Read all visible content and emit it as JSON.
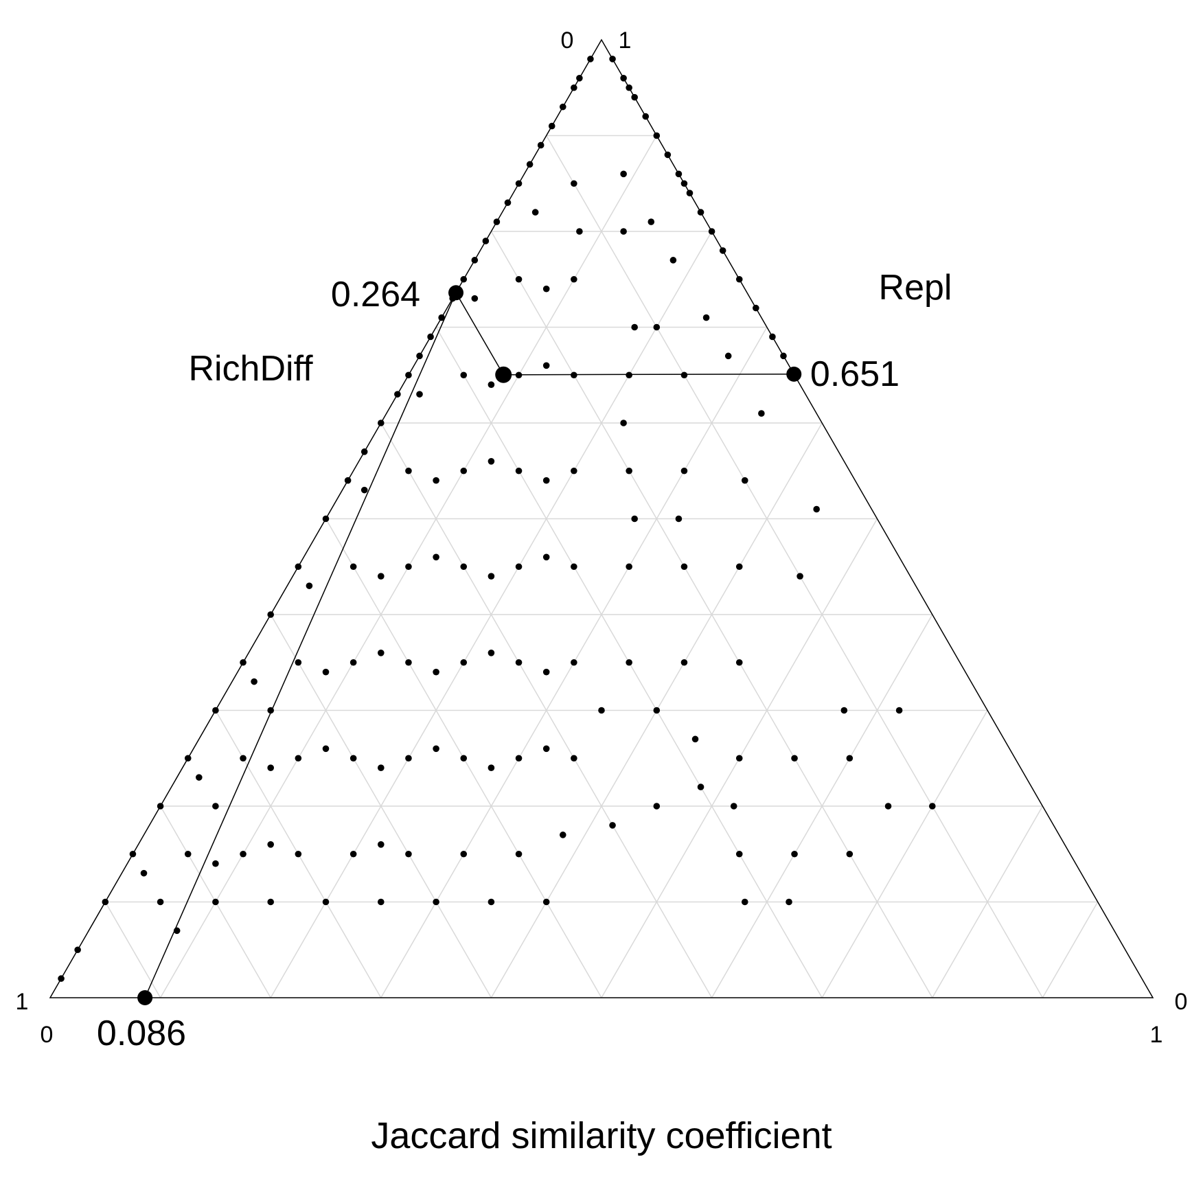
{
  "chart_data": {
    "type": "scatter",
    "subtype": "ternary",
    "title": "",
    "xlabel": "Jaccard similarity coefficient",
    "axes": {
      "richdiff": {
        "name": "RichDiff"
      },
      "repl": {
        "name": "Repl"
      }
    },
    "corner_ticks": {
      "apex_left": "0",
      "apex_right": "1",
      "bottom_left_upper": "1",
      "bottom_left_lower": "0",
      "bottom_right_upper": "0",
      "bottom_right_lower": "1"
    },
    "grid": true,
    "grid_step": 0.1,
    "mean_point": {
      "similarity": 0.086,
      "richdiff": 0.264,
      "repl": 0.651
    },
    "mean_labels": {
      "similarity": "0.086",
      "richdiff": "0.264",
      "repl": "0.651"
    },
    "point_color": "#000000",
    "grid_color": "#d9d9d9",
    "points": [
      [
        0.0,
        0.02,
        0.98
      ],
      [
        0.0,
        0.04,
        0.96
      ],
      [
        0.0,
        0.05,
        0.95
      ],
      [
        0.0,
        0.07,
        0.93
      ],
      [
        0.0,
        0.09,
        0.91
      ],
      [
        0.0,
        0.11,
        0.89
      ],
      [
        0.0,
        0.13,
        0.87
      ],
      [
        0.0,
        0.15,
        0.85
      ],
      [
        0.0,
        0.17,
        0.83
      ],
      [
        0.0,
        0.19,
        0.81
      ],
      [
        0.0,
        0.21,
        0.79
      ],
      [
        0.0,
        0.23,
        0.77
      ],
      [
        0.0,
        0.25,
        0.75
      ],
      [
        0.0,
        0.27,
        0.73
      ],
      [
        0.0,
        0.29,
        0.71
      ],
      [
        0.0,
        0.31,
        0.69
      ],
      [
        0.0,
        0.33,
        0.67
      ],
      [
        0.0,
        0.35,
        0.65
      ],
      [
        0.0,
        0.37,
        0.63
      ],
      [
        0.0,
        0.4,
        0.6
      ],
      [
        0.0,
        0.43,
        0.57
      ],
      [
        0.0,
        0.46,
        0.54
      ],
      [
        0.0,
        0.5,
        0.5
      ],
      [
        0.0,
        0.55,
        0.45
      ],
      [
        0.0,
        0.6,
        0.4
      ],
      [
        0.0,
        0.65,
        0.35
      ],
      [
        0.0,
        0.7,
        0.3
      ],
      [
        0.0,
        0.75,
        0.25
      ],
      [
        0.0,
        0.8,
        0.2
      ],
      [
        0.0,
        0.85,
        0.15
      ],
      [
        0.0,
        0.9,
        0.1
      ],
      [
        0.0,
        0.95,
        0.05
      ],
      [
        0.0,
        0.98,
        0.02
      ],
      [
        0.02,
        0.0,
        0.98
      ],
      [
        0.04,
        0.0,
        0.96
      ],
      [
        0.06,
        0.0,
        0.94
      ],
      [
        0.08,
        0.0,
        0.92
      ],
      [
        0.1,
        0.0,
        0.9
      ],
      [
        0.12,
        0.0,
        0.88
      ],
      [
        0.14,
        0.0,
        0.86
      ],
      [
        0.16,
        0.0,
        0.84
      ],
      [
        0.18,
        0.0,
        0.82
      ],
      [
        0.2,
        0.0,
        0.8
      ],
      [
        0.22,
        0.0,
        0.78
      ],
      [
        0.25,
        0.0,
        0.75
      ],
      [
        0.28,
        0.0,
        0.72
      ],
      [
        0.31,
        0.0,
        0.69
      ],
      [
        0.33,
        0.0,
        0.67
      ],
      [
        0.05,
        0.0,
        0.95
      ],
      [
        0.15,
        0.0,
        0.85
      ],
      [
        0.2,
        0.1,
        0.7
      ],
      [
        0.25,
        0.1,
        0.65
      ],
      [
        0.3,
        0.15,
        0.55
      ],
      [
        0.2,
        0.15,
        0.65
      ],
      [
        0.1,
        0.15,
        0.75
      ],
      [
        0.15,
        0.2,
        0.65
      ],
      [
        0.25,
        0.2,
        0.55
      ],
      [
        0.35,
        0.2,
        0.45
      ],
      [
        0.1,
        0.25,
        0.65
      ],
      [
        0.2,
        0.25,
        0.55
      ],
      [
        0.3,
        0.25,
        0.45
      ],
      [
        0.15,
        0.3,
        0.55
      ],
      [
        0.25,
        0.3,
        0.45
      ],
      [
        0.35,
        0.3,
        0.35
      ],
      [
        0.1,
        0.35,
        0.55
      ],
      [
        0.2,
        0.35,
        0.45
      ],
      [
        0.3,
        0.35,
        0.35
      ],
      [
        0.15,
        0.4,
        0.45
      ],
      [
        0.25,
        0.4,
        0.35
      ],
      [
        0.35,
        0.4,
        0.25
      ],
      [
        0.1,
        0.45,
        0.45
      ],
      [
        0.2,
        0.45,
        0.35
      ],
      [
        0.3,
        0.45,
        0.25
      ],
      [
        0.15,
        0.5,
        0.35
      ],
      [
        0.25,
        0.5,
        0.25
      ],
      [
        0.35,
        0.5,
        0.15
      ],
      [
        0.1,
        0.55,
        0.35
      ],
      [
        0.2,
        0.55,
        0.25
      ],
      [
        0.3,
        0.55,
        0.15
      ],
      [
        0.15,
        0.6,
        0.25
      ],
      [
        0.25,
        0.6,
        0.15
      ],
      [
        0.1,
        0.65,
        0.25
      ],
      [
        0.2,
        0.65,
        0.15
      ],
      [
        0.05,
        0.7,
        0.25
      ],
      [
        0.15,
        0.7,
        0.15
      ],
      [
        0.1,
        0.75,
        0.15
      ],
      [
        0.05,
        0.8,
        0.15
      ],
      [
        0.1,
        0.8,
        0.1
      ],
      [
        0.05,
        0.1,
        0.85
      ],
      [
        0.08,
        0.12,
        0.8
      ],
      [
        0.12,
        0.08,
        0.8
      ],
      [
        0.05,
        0.2,
        0.75
      ],
      [
        0.08,
        0.18,
        0.74
      ],
      [
        0.12,
        0.22,
        0.66
      ],
      [
        0.18,
        0.12,
        0.7
      ],
      [
        0.22,
        0.18,
        0.6
      ],
      [
        0.05,
        0.3,
        0.65
      ],
      [
        0.08,
        0.28,
        0.64
      ],
      [
        0.12,
        0.32,
        0.56
      ],
      [
        0.18,
        0.28,
        0.54
      ],
      [
        0.22,
        0.32,
        0.46
      ],
      [
        0.28,
        0.22,
        0.5
      ],
      [
        0.32,
        0.18,
        0.5
      ],
      [
        0.05,
        0.4,
        0.55
      ],
      [
        0.08,
        0.38,
        0.54
      ],
      [
        0.12,
        0.42,
        0.46
      ],
      [
        0.18,
        0.38,
        0.44
      ],
      [
        0.22,
        0.42,
        0.36
      ],
      [
        0.28,
        0.38,
        0.34
      ],
      [
        0.32,
        0.42,
        0.26
      ],
      [
        0.05,
        0.5,
        0.45
      ],
      [
        0.08,
        0.48,
        0.44
      ],
      [
        0.12,
        0.52,
        0.36
      ],
      [
        0.18,
        0.48,
        0.34
      ],
      [
        0.22,
        0.52,
        0.26
      ],
      [
        0.28,
        0.48,
        0.24
      ],
      [
        0.05,
        0.6,
        0.35
      ],
      [
        0.08,
        0.58,
        0.34
      ],
      [
        0.12,
        0.62,
        0.26
      ],
      [
        0.18,
        0.58,
        0.24
      ],
      [
        0.22,
        0.62,
        0.16
      ],
      [
        0.05,
        0.65,
        0.3
      ],
      [
        0.08,
        0.68,
        0.24
      ],
      [
        0.12,
        0.72,
        0.16
      ],
      [
        0.05,
        0.75,
        0.2
      ],
      [
        0.08,
        0.78,
        0.14
      ],
      [
        0.05,
        0.85,
        0.1
      ],
      [
        0.08,
        0.85,
        0.07
      ],
      [
        0.4,
        0.15,
        0.45
      ],
      [
        0.45,
        0.2,
        0.35
      ],
      [
        0.4,
        0.3,
        0.3
      ],
      [
        0.45,
        0.35,
        0.2
      ],
      [
        0.38,
        0.45,
        0.17
      ],
      [
        0.42,
        0.4,
        0.18
      ],
      [
        0.48,
        0.3,
        0.22
      ],
      [
        0.5,
        0.25,
        0.25
      ],
      [
        0.55,
        0.2,
        0.25
      ],
      [
        0.6,
        0.15,
        0.25
      ],
      [
        0.4,
        0.25,
        0.35
      ],
      [
        0.35,
        0.35,
        0.3
      ],
      [
        0.45,
        0.28,
        0.27
      ],
      [
        0.52,
        0.28,
        0.2
      ],
      [
        0.57,
        0.13,
        0.3
      ],
      [
        0.62,
        0.08,
        0.3
      ],
      [
        0.66,
        0.14,
        0.2
      ],
      [
        0.7,
        0.1,
        0.2
      ],
      [
        0.65,
        0.2,
        0.15
      ],
      [
        0.55,
        0.3,
        0.15
      ],
      [
        0.6,
        0.25,
        0.15
      ],
      [
        0.58,
        0.32,
        0.1
      ],
      [
        0.62,
        0.28,
        0.1
      ],
      [
        0.35,
        0.55,
        0.1
      ],
      [
        0.3,
        0.6,
        0.1
      ],
      [
        0.4,
        0.5,
        0.1
      ],
      [
        0.25,
        0.65,
        0.1
      ],
      [
        0.2,
        0.7,
        0.1
      ],
      [
        0.15,
        0.75,
        0.1
      ],
      [
        0.02,
        0.25,
        0.73
      ],
      [
        0.02,
        0.35,
        0.63
      ],
      [
        0.02,
        0.45,
        0.53
      ],
      [
        0.02,
        0.55,
        0.43
      ],
      [
        0.02,
        0.65,
        0.33
      ],
      [
        0.02,
        0.75,
        0.23
      ],
      [
        0.02,
        0.85,
        0.13
      ],
      [
        0.03,
        0.15,
        0.82
      ],
      [
        0.14,
        0.05,
        0.81
      ],
      [
        0.24,
        0.05,
        0.71
      ],
      [
        0.34,
        0.05,
        0.61
      ],
      [
        0.44,
        0.05,
        0.51
      ],
      [
        0.36,
        0.1,
        0.54
      ],
      [
        0.46,
        0.1,
        0.44
      ],
      [
        0.28,
        0.05,
        0.67
      ],
      [
        0.18,
        0.05,
        0.77
      ],
      [
        0.09,
        0.05,
        0.86
      ]
    ]
  }
}
